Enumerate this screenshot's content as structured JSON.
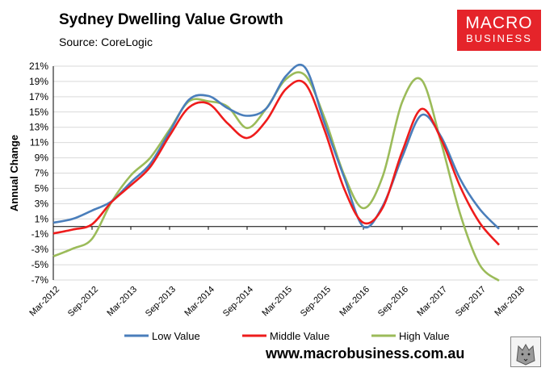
{
  "header": {
    "title": "Sydney Dwelling Value Growth",
    "source": "Source: CoreLogic"
  },
  "logo": {
    "line1": "MACRO",
    "line2": "BUSINESS",
    "color": "#e5242a"
  },
  "footer": {
    "website": "www.macrobusiness.com.au"
  },
  "chart_data": {
    "type": "line",
    "title": "Sydney Dwelling Value Growth",
    "ylabel": "Annual Change",
    "xlabel": "",
    "ylim": [
      -7,
      22
    ],
    "yticks": [
      "21%",
      "19%",
      "17%",
      "15%",
      "13%",
      "11%",
      "9%",
      "7%",
      "5%",
      "3%",
      "1%",
      "-1%",
      "-3%",
      "-5%",
      "-7%"
    ],
    "ytick_values": [
      21,
      19,
      17,
      15,
      13,
      11,
      9,
      7,
      5,
      3,
      1,
      -1,
      -3,
      -5,
      -7
    ],
    "x": [
      "Mar-2012",
      "Jun-2012",
      "Sep-2012",
      "Dec-2012",
      "Mar-2013",
      "Jun-2013",
      "Sep-2013",
      "Dec-2013",
      "Mar-2014",
      "Jun-2014",
      "Sep-2014",
      "Dec-2014",
      "Mar-2015",
      "Jun-2015",
      "Sep-2015",
      "Dec-2015",
      "Mar-2016",
      "Jun-2016",
      "Sep-2016",
      "Dec-2016",
      "Mar-2017",
      "Jun-2017",
      "Sep-2017",
      "Dec-2017",
      "Mar-2018",
      "Jun-2018"
    ],
    "xtick_labels": [
      "Mar-2012",
      "Sep-2012",
      "Mar-2013",
      "Sep-2013",
      "Mar-2014",
      "Sep-2014",
      "Mar-2015",
      "Sep-2015",
      "Mar-2016",
      "Sep-2016",
      "Mar-2017",
      "Sep-2017",
      "Mar-2018"
    ],
    "xtick_indices": [
      0,
      2,
      4,
      6,
      8,
      10,
      12,
      14,
      16,
      18,
      20,
      22,
      24
    ],
    "grid": "horizontal",
    "legend_position": "bottom",
    "series": [
      {
        "name": "Low Value",
        "color": "#4a7ebb",
        "values": [
          0.5,
          1.0,
          2.1,
          3.3,
          5.8,
          8.2,
          12.4,
          16.6,
          17.1,
          15.5,
          14.5,
          15.5,
          19.7,
          20.8,
          13.5,
          6.5,
          0.0,
          2.7,
          9.1,
          14.6,
          11.8,
          6.2,
          2.3,
          -0.3,
          null,
          null
        ]
      },
      {
        "name": "Middle Value",
        "color": "#ee1c1c",
        "values": [
          -0.9,
          -0.4,
          0.3,
          3.2,
          5.4,
          7.8,
          11.9,
          15.6,
          16.1,
          13.5,
          11.6,
          13.9,
          18.0,
          18.7,
          12.6,
          5.0,
          0.5,
          2.5,
          9.8,
          15.4,
          11.5,
          5.2,
          0.5,
          -2.4,
          null,
          null
        ]
      },
      {
        "name": "High Value",
        "color": "#9bbb59",
        "values": [
          -3.9,
          -2.9,
          -1.6,
          3.2,
          6.7,
          9.0,
          12.7,
          16.4,
          16.4,
          15.7,
          12.9,
          15.5,
          19.3,
          19.8,
          14.2,
          6.8,
          2.4,
          6.6,
          16.3,
          19.2,
          11.1,
          1.6,
          -5.0,
          -7.1,
          null,
          null
        ]
      }
    ]
  }
}
